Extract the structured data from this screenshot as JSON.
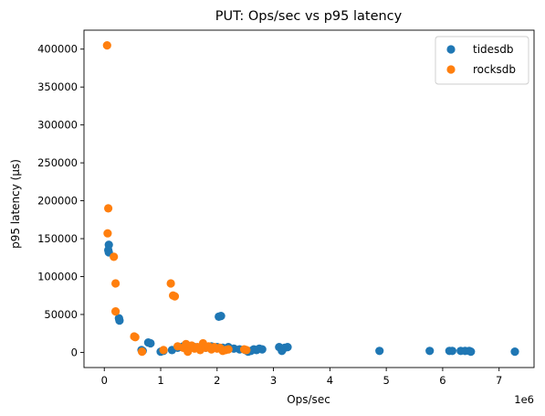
{
  "chart_data": {
    "type": "scatter",
    "title": "PUT: Ops/sec vs p95 latency",
    "xlabel": "Ops/sec",
    "ylabel": "p95 latency (µs)",
    "x_offset_label": "1e6",
    "x_scale": 1000000,
    "xlim": [
      -0.36,
      7.62
    ],
    "ylim": [
      -20000,
      425000
    ],
    "xticks": [
      0,
      1,
      2,
      3,
      4,
      5,
      6,
      7
    ],
    "xtick_labels": [
      "0",
      "1",
      "2",
      "3",
      "4",
      "5",
      "6",
      "7"
    ],
    "yticks": [
      0,
      50000,
      100000,
      150000,
      200000,
      250000,
      300000,
      350000,
      400000
    ],
    "ytick_labels": [
      "0",
      "50000",
      "100000",
      "150000",
      "200000",
      "250000",
      "300000",
      "350000",
      "400000"
    ],
    "grid": false,
    "legend": "top-right",
    "series": [
      {
        "name": "tidesdb",
        "color": "#1f77b4",
        "points": [
          [
            0.08,
            142000
          ],
          [
            0.07,
            135000
          ],
          [
            0.08,
            132000
          ],
          [
            0.26,
            45000
          ],
          [
            0.27,
            42000
          ],
          [
            0.66,
            3000
          ],
          [
            0.68,
            2000
          ],
          [
            0.78,
            13000
          ],
          [
            0.82,
            12000
          ],
          [
            1.0,
            1000
          ],
          [
            1.05,
            2000
          ],
          [
            1.2,
            3000
          ],
          [
            1.3,
            6000
          ],
          [
            1.4,
            8000
          ],
          [
            1.5,
            5000
          ],
          [
            1.6,
            7000
          ],
          [
            1.7,
            4000
          ],
          [
            1.8,
            6000
          ],
          [
            1.9,
            8000
          ],
          [
            2.0,
            7000
          ],
          [
            2.1,
            6000
          ],
          [
            2.2,
            7000
          ],
          [
            2.3,
            5000
          ],
          [
            2.4,
            4000
          ],
          [
            2.5,
            3000
          ],
          [
            2.55,
            1000
          ],
          [
            2.6,
            2000
          ],
          [
            2.65,
            4000
          ],
          [
            2.7,
            3000
          ],
          [
            2.75,
            5000
          ],
          [
            2.8,
            4000
          ],
          [
            2.03,
            47000
          ],
          [
            2.07,
            48000
          ],
          [
            3.1,
            7000
          ],
          [
            3.15,
            2000
          ],
          [
            3.2,
            6000
          ],
          [
            3.25,
            7000
          ],
          [
            4.88,
            2000
          ],
          [
            5.77,
            2000
          ],
          [
            6.12,
            2000
          ],
          [
            6.17,
            2000
          ],
          [
            6.32,
            2000
          ],
          [
            6.4,
            2000
          ],
          [
            6.47,
            2000
          ],
          [
            6.5,
            1000
          ],
          [
            7.28,
            1000
          ]
        ]
      },
      {
        "name": "rocksdb",
        "color": "#ff7f0e",
        "points": [
          [
            0.05,
            405000
          ],
          [
            0.07,
            190000
          ],
          [
            0.06,
            157000
          ],
          [
            0.17,
            126000
          ],
          [
            0.2,
            91000
          ],
          [
            0.2,
            54000
          ],
          [
            0.53,
            21000
          ],
          [
            0.55,
            20000
          ],
          [
            0.67,
            1000
          ],
          [
            1.05,
            3000
          ],
          [
            1.18,
            91000
          ],
          [
            1.22,
            75000
          ],
          [
            1.25,
            74000
          ],
          [
            1.3,
            8000
          ],
          [
            1.4,
            6000
          ],
          [
            1.45,
            11000
          ],
          [
            1.48,
            1000
          ],
          [
            1.55,
            9000
          ],
          [
            1.6,
            5000
          ],
          [
            1.65,
            7000
          ],
          [
            1.7,
            3000
          ],
          [
            1.75,
            12000
          ],
          [
            1.8,
            6000
          ],
          [
            1.85,
            8000
          ],
          [
            1.9,
            4000
          ],
          [
            1.95,
            7000
          ],
          [
            2.0,
            5000
          ],
          [
            2.05,
            6000
          ],
          [
            2.1,
            2000
          ],
          [
            2.15,
            3000
          ],
          [
            2.2,
            4000
          ],
          [
            2.48,
            4000
          ],
          [
            2.52,
            3000
          ]
        ]
      }
    ]
  }
}
